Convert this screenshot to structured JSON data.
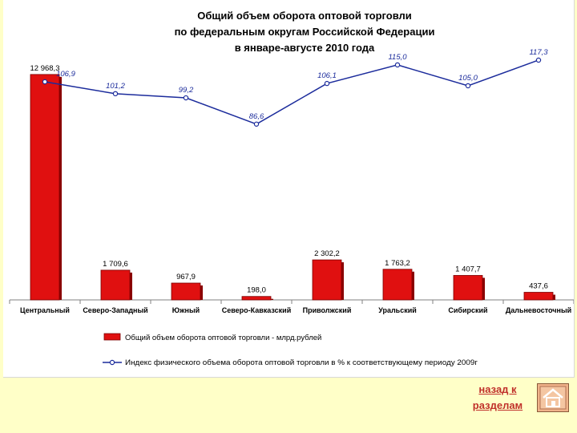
{
  "nav": {
    "back_label_line1": "назад к",
    "back_label_line2": "разделам",
    "home_icon": "home-icon"
  },
  "chart_data": {
    "type": "bar",
    "title": "Общий объем оборота оптовой торговли по федеральным округам Российской Федерации в январе-августе 2010 года",
    "title_lines": [
      "Общий объем оборота оптовой торговли",
      "по федеральным округам Российской Федерации",
      "в январе-августе 2010 года"
    ],
    "categories": [
      "Центральный",
      "Северо-Западный",
      "Южный",
      "Северо-Кавказский",
      "Приволжский",
      "Уральский",
      "Сибирский",
      "Дальневосточный"
    ],
    "series": [
      {
        "name": "Общий объем оборота оптовой торговли - млрд.рублей",
        "type": "bar",
        "color": "#e01010",
        "values": [
          12968.3,
          1709.6,
          967.9,
          198.0,
          2302.2,
          1763.2,
          1407.7,
          437.6
        ],
        "labels": [
          "12 968,3",
          "1 709,6",
          "967,9",
          "198,0",
          "2 302,2",
          "1 763,2",
          "1 407,7",
          "437,6"
        ]
      },
      {
        "name": "Индекс физического объема оборота оптовой торговли в % к соответствующему периоду 2009г",
        "type": "line",
        "color": "#1c2c9c",
        "values": [
          106.9,
          101.2,
          99.2,
          86.6,
          106.1,
          115.0,
          105.0,
          117.3
        ],
        "labels": [
          "106,9",
          "101,2",
          "99,2",
          "86,6",
          "106,1",
          "115,0",
          "105,0",
          "117,3"
        ]
      }
    ],
    "legend_position": "bottom",
    "grid": false
  }
}
